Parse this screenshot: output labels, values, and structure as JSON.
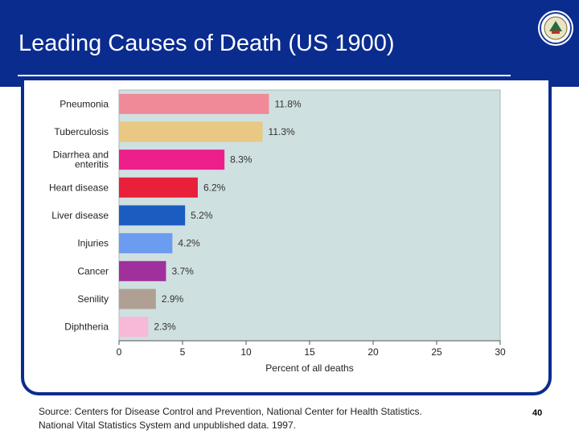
{
  "slide": {
    "title": "Leading Causes of Death (US 1900)",
    "source_line1": "Source: Centers for Disease Control and Prevention, National Center for Health Statistics.",
    "source_line2": "National Vital Statistics System and unpublished data. 1997.",
    "page_number": "40"
  },
  "colors": {
    "header_bg": "#0b2c8f",
    "plot_bg": "#cfe0e0"
  },
  "chart_data": {
    "type": "bar",
    "orientation": "horizontal",
    "title": "",
    "xlabel": "Percent of all deaths",
    "ylabel": "",
    "xlim": [
      0,
      30
    ],
    "xticks": [
      0,
      5,
      10,
      15,
      20,
      25,
      30
    ],
    "categories": [
      "Pneumonia",
      "Tuberculosis",
      "Diarrhea and enteritis",
      "Heart disease",
      "Liver disease",
      "Injuries",
      "Cancer",
      "Senility",
      "Diphtheria"
    ],
    "category_lines": [
      [
        "Pneumonia"
      ],
      [
        "Tuberculosis"
      ],
      [
        "Diarrhea and",
        "enteritis"
      ],
      [
        "Heart disease"
      ],
      [
        "Liver disease"
      ],
      [
        "Injuries"
      ],
      [
        "Cancer"
      ],
      [
        "Senility"
      ],
      [
        "Diphtheria"
      ]
    ],
    "values": [
      11.8,
      11.3,
      8.3,
      6.2,
      5.2,
      4.2,
      3.7,
      2.9,
      2.3
    ],
    "value_labels": [
      "11.8%",
      "11.3%",
      "8.3%",
      "6.2%",
      "5.2%",
      "4.2%",
      "3.7%",
      "2.9%",
      "2.3%"
    ],
    "bar_colors": [
      "#f08a98",
      "#e8c882",
      "#ee1e8c",
      "#e8203a",
      "#1a5cc0",
      "#6c9cf0",
      "#a0309c",
      "#b0a094",
      "#f8b8d8"
    ],
    "grid": false
  }
}
